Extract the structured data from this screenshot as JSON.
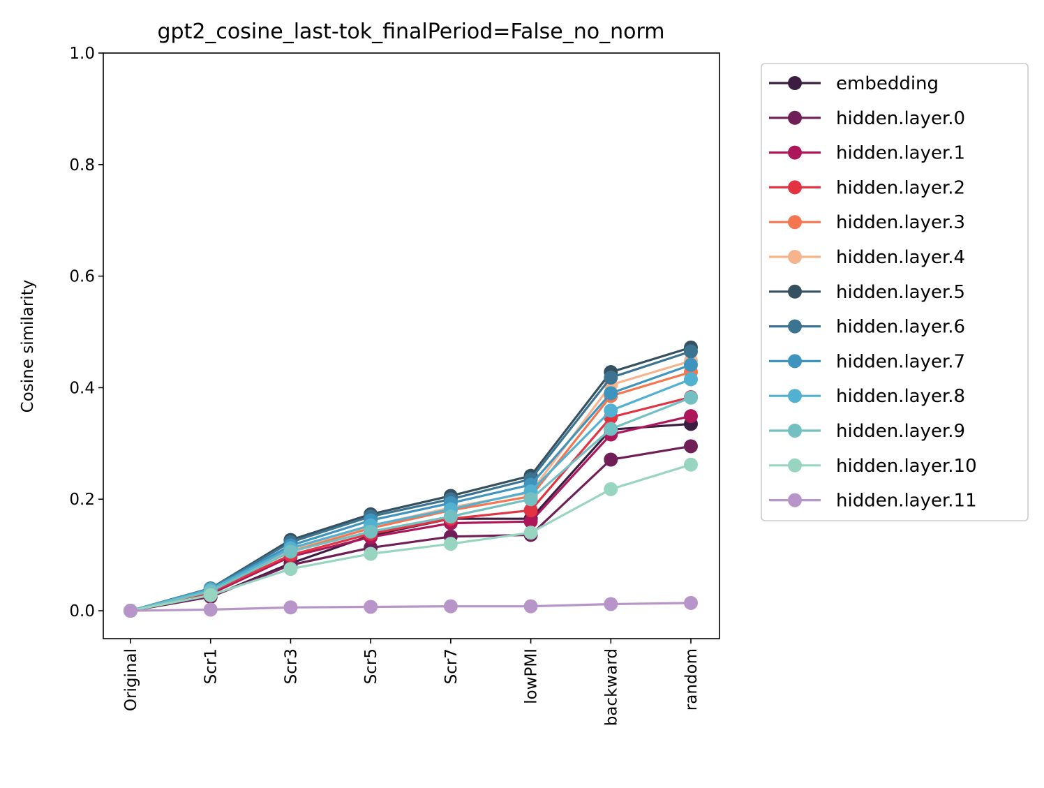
{
  "chart_data": {
    "type": "line",
    "title": "gpt2_cosine_last-tok_finalPeriod=False_no_norm",
    "xlabel": "",
    "ylabel": "Cosine similarity",
    "ylim": [
      -0.05,
      1.0
    ],
    "yticks": [
      0.0,
      0.2,
      0.4,
      0.6,
      0.8,
      1.0
    ],
    "ytick_labels": [
      "0.0",
      "0.2",
      "0.4",
      "0.6",
      "0.8",
      "1.0"
    ],
    "categories": [
      "Original",
      "Scr1",
      "Scr3",
      "Scr5",
      "Scr7",
      "lowPMI",
      "backward",
      "random"
    ],
    "grid": false,
    "legend_position": "outside right, top",
    "series": [
      {
        "name": "embedding",
        "color": "#3b1d42",
        "values": [
          0.0,
          0.025,
          0.085,
          0.135,
          0.165,
          0.165,
          0.325,
          0.335
        ]
      },
      {
        "name": "hidden.layer.0",
        "color": "#6f1e57",
        "values": [
          0.0,
          0.025,
          0.082,
          0.113,
          0.133,
          0.136,
          0.271,
          0.295
        ]
      },
      {
        "name": "hidden.layer.1",
        "color": "#ad1759",
        "values": [
          0.0,
          0.03,
          0.097,
          0.132,
          0.157,
          0.16,
          0.316,
          0.349
        ]
      },
      {
        "name": "hidden.layer.2",
        "color": "#e13342",
        "values": [
          0.0,
          0.033,
          0.1,
          0.138,
          0.165,
          0.18,
          0.347,
          0.383
        ]
      },
      {
        "name": "hidden.layer.3",
        "color": "#f37651",
        "values": [
          0.0,
          0.035,
          0.107,
          0.148,
          0.18,
          0.205,
          0.385,
          0.428
        ]
      },
      {
        "name": "hidden.layer.4",
        "color": "#f6b48e",
        "values": [
          0.0,
          0.035,
          0.11,
          0.152,
          0.185,
          0.212,
          0.405,
          0.448
        ]
      },
      {
        "name": "hidden.layer.5",
        "color": "#35505e",
        "values": [
          0.0,
          0.04,
          0.127,
          0.173,
          0.206,
          0.242,
          0.428,
          0.472
        ]
      },
      {
        "name": "hidden.layer.6",
        "color": "#3b7391",
        "values": [
          0.0,
          0.04,
          0.123,
          0.169,
          0.2,
          0.236,
          0.418,
          0.465
        ]
      },
      {
        "name": "hidden.layer.7",
        "color": "#3e94bd",
        "values": [
          0.0,
          0.039,
          0.117,
          0.162,
          0.193,
          0.226,
          0.39,
          0.441
        ]
      },
      {
        "name": "hidden.layer.8",
        "color": "#52b0d0",
        "values": [
          0.0,
          0.038,
          0.112,
          0.153,
          0.182,
          0.214,
          0.359,
          0.415
        ]
      },
      {
        "name": "hidden.layer.9",
        "color": "#73c0c3",
        "values": [
          0.0,
          0.035,
          0.106,
          0.142,
          0.169,
          0.2,
          0.326,
          0.382
        ]
      },
      {
        "name": "hidden.layer.10",
        "color": "#98d5c1",
        "values": [
          0.0,
          0.028,
          0.075,
          0.102,
          0.12,
          0.14,
          0.218,
          0.262
        ]
      },
      {
        "name": "hidden.layer.11",
        "color": "#b795c8",
        "values": [
          0.0,
          0.002,
          0.006,
          0.007,
          0.008,
          0.008,
          0.012,
          0.014
        ]
      }
    ]
  }
}
